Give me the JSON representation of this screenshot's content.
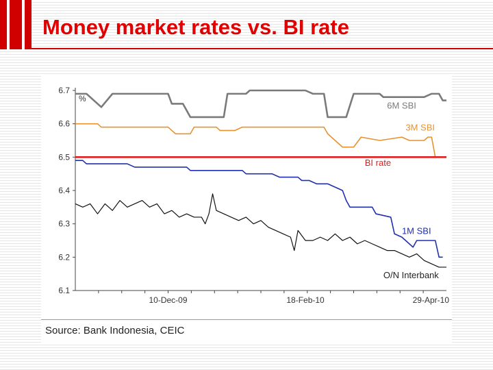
{
  "slide": {
    "title": "Money market rates vs. BI rate",
    "source": "Source: Bank Indonesia, CEIC"
  },
  "chart_data": {
    "type": "line",
    "ylabel": "%",
    "ylim": [
      6.1,
      6.7
    ],
    "yticks": [
      "6.7",
      "6.6",
      "6.5",
      "6.4",
      "6.3",
      "6.2",
      "6.1"
    ],
    "xlim": [
      0,
      100
    ],
    "xtick_labels": [
      {
        "x": 25,
        "label": "10-Dec-09"
      },
      {
        "x": 62,
        "label": "18-Feb-10"
      },
      {
        "x": 100,
        "label": "29-Apr-10"
      }
    ],
    "grid": false,
    "colors": {
      "6M SBI": "#7a7a7a",
      "3M SBI": "#e8912e",
      "BI rate": "#dd1f1f",
      "1M SBI": "#1f2fb0",
      "O/N Interbank": "#111111"
    },
    "series": [
      {
        "name": "6M SBI",
        "step": true,
        "points": [
          [
            0,
            6.69
          ],
          [
            3,
            6.69
          ],
          [
            7,
            6.65
          ],
          [
            10,
            6.69
          ],
          [
            25,
            6.69
          ],
          [
            26,
            6.66
          ],
          [
            29,
            6.66
          ],
          [
            31,
            6.62
          ],
          [
            40,
            6.62
          ],
          [
            41,
            6.69
          ],
          [
            46,
            6.69
          ],
          [
            47,
            6.7
          ],
          [
            62,
            6.7
          ],
          [
            64,
            6.69
          ],
          [
            67,
            6.69
          ],
          [
            68,
            6.62
          ],
          [
            73,
            6.62
          ],
          [
            75,
            6.69
          ],
          [
            82,
            6.69
          ],
          [
            83,
            6.68
          ],
          [
            94,
            6.68
          ],
          [
            96,
            6.69
          ],
          [
            98,
            6.69
          ],
          [
            99,
            6.67
          ],
          [
            100,
            6.67
          ]
        ]
      },
      {
        "name": "3M SBI",
        "step": true,
        "points": [
          [
            0,
            6.6
          ],
          [
            6,
            6.6
          ],
          [
            7,
            6.59
          ],
          [
            25,
            6.59
          ],
          [
            27,
            6.57
          ],
          [
            31,
            6.57
          ],
          [
            32,
            6.59
          ],
          [
            38,
            6.59
          ],
          [
            39,
            6.58
          ],
          [
            43,
            6.58
          ],
          [
            45,
            6.59
          ],
          [
            60,
            6.59
          ],
          [
            63,
            6.59
          ],
          [
            67,
            6.59
          ],
          [
            68,
            6.57
          ],
          [
            72,
            6.53
          ],
          [
            75,
            6.53
          ],
          [
            77,
            6.56
          ],
          [
            82,
            6.55
          ],
          [
            88,
            6.56
          ],
          [
            90,
            6.55
          ],
          [
            94,
            6.55
          ],
          [
            95,
            6.56
          ],
          [
            96,
            6.56
          ],
          [
            97,
            6.5
          ]
        ]
      },
      {
        "name": "BI rate",
        "points": [
          [
            0,
            6.5
          ],
          [
            100,
            6.5
          ]
        ]
      },
      {
        "name": "1M SBI",
        "step": true,
        "points": [
          [
            0,
            6.49
          ],
          [
            2,
            6.49
          ],
          [
            3,
            6.48
          ],
          [
            14,
            6.48
          ],
          [
            16,
            6.47
          ],
          [
            30,
            6.47
          ],
          [
            31,
            6.46
          ],
          [
            45,
            6.46
          ],
          [
            46,
            6.45
          ],
          [
            53,
            6.45
          ],
          [
            55,
            6.44
          ],
          [
            60,
            6.44
          ],
          [
            61,
            6.43
          ],
          [
            63,
            6.43
          ],
          [
            65,
            6.42
          ],
          [
            68,
            6.42
          ],
          [
            70,
            6.41
          ],
          [
            72,
            6.4
          ],
          [
            73,
            6.37
          ],
          [
            74,
            6.35
          ],
          [
            80,
            6.35
          ],
          [
            81,
            6.33
          ],
          [
            85,
            6.32
          ],
          [
            86,
            6.27
          ],
          [
            88,
            6.26
          ],
          [
            91,
            6.23
          ],
          [
            92,
            6.25
          ],
          [
            97,
            6.25
          ],
          [
            98,
            6.2
          ],
          [
            99,
            6.2
          ]
        ]
      },
      {
        "name": "O/N Interbank",
        "points": [
          [
            0,
            6.36
          ],
          [
            2,
            6.35
          ],
          [
            4,
            6.36
          ],
          [
            6,
            6.33
          ],
          [
            8,
            6.36
          ],
          [
            10,
            6.34
          ],
          [
            12,
            6.37
          ],
          [
            14,
            6.35
          ],
          [
            16,
            6.36
          ],
          [
            18,
            6.37
          ],
          [
            20,
            6.35
          ],
          [
            22,
            6.36
          ],
          [
            24,
            6.33
          ],
          [
            26,
            6.34
          ],
          [
            28,
            6.32
          ],
          [
            30,
            6.33
          ],
          [
            32,
            6.32
          ],
          [
            34,
            6.32
          ],
          [
            35,
            6.3
          ],
          [
            36,
            6.33
          ],
          [
            37,
            6.39
          ],
          [
            38,
            6.34
          ],
          [
            40,
            6.33
          ],
          [
            42,
            6.32
          ],
          [
            44,
            6.31
          ],
          [
            46,
            6.32
          ],
          [
            48,
            6.3
          ],
          [
            50,
            6.31
          ],
          [
            52,
            6.29
          ],
          [
            54,
            6.28
          ],
          [
            56,
            6.27
          ],
          [
            58,
            6.26
          ],
          [
            59,
            6.22
          ],
          [
            60,
            6.28
          ],
          [
            62,
            6.25
          ],
          [
            64,
            6.25
          ],
          [
            66,
            6.26
          ],
          [
            68,
            6.25
          ],
          [
            70,
            6.27
          ],
          [
            72,
            6.25
          ],
          [
            74,
            6.26
          ],
          [
            76,
            6.24
          ],
          [
            78,
            6.25
          ],
          [
            80,
            6.24
          ],
          [
            82,
            6.23
          ],
          [
            84,
            6.22
          ],
          [
            86,
            6.22
          ],
          [
            88,
            6.21
          ],
          [
            90,
            6.2
          ],
          [
            92,
            6.21
          ],
          [
            94,
            6.19
          ],
          [
            96,
            6.18
          ],
          [
            98,
            6.17
          ],
          [
            100,
            6.17
          ]
        ]
      }
    ],
    "series_labels": [
      {
        "series": "6M SBI",
        "text": "6M SBI",
        "x": 84,
        "y": 6.646
      },
      {
        "series": "3M SBI",
        "text": "3M SBI",
        "x": 89,
        "y": 6.58
      },
      {
        "series": "BI rate",
        "text": "BI rate",
        "x": 78,
        "y": 6.474
      },
      {
        "series": "1M SBI",
        "text": "1M SBI",
        "x": 88,
        "y": 6.27
      },
      {
        "series": "O/N Interbank",
        "text": "O/N Interbank",
        "x": 83,
        "y": 6.137
      }
    ]
  }
}
